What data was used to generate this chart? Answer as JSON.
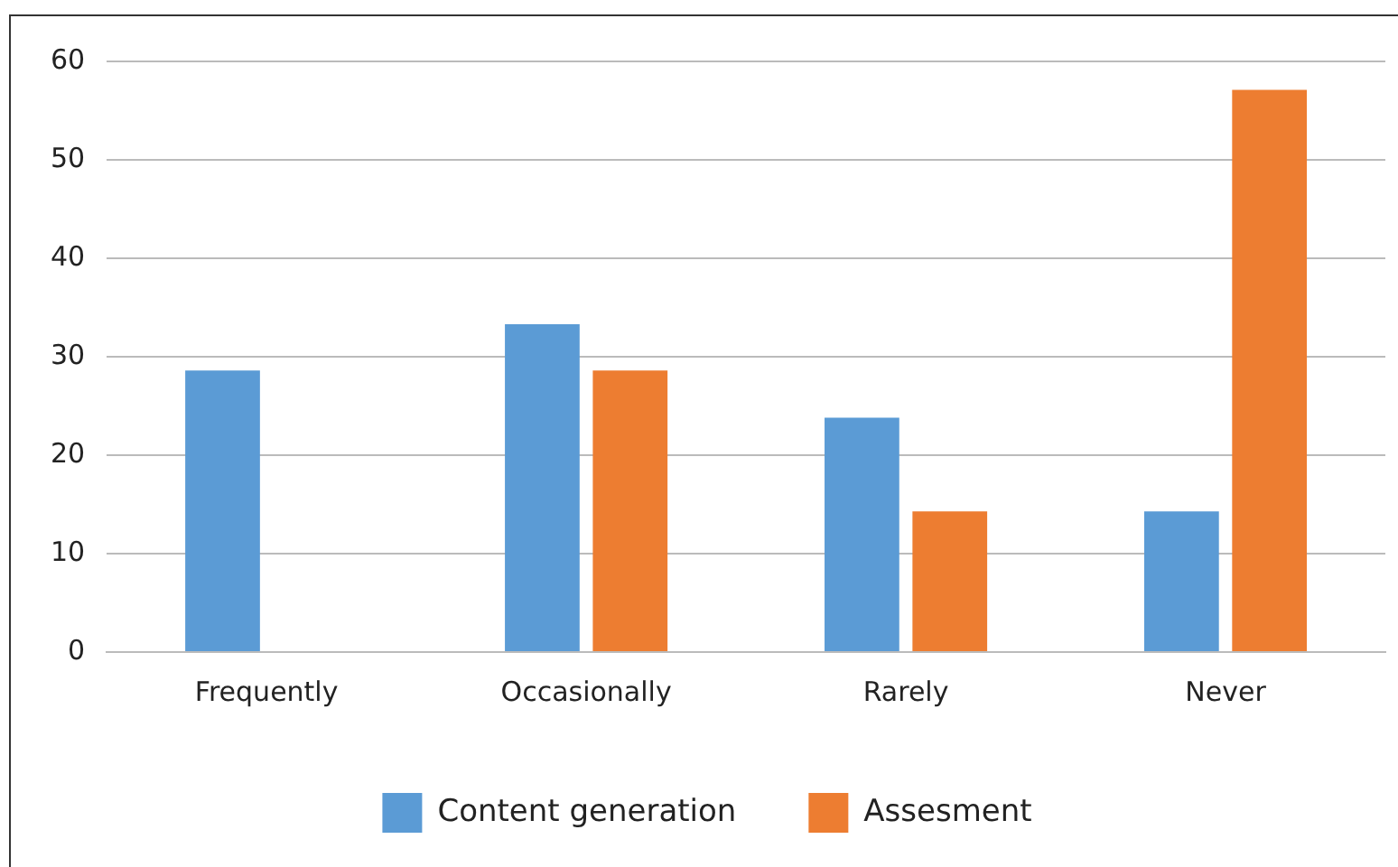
{
  "chart_data": {
    "type": "bar",
    "categories": [
      "Frequently",
      "Occasionally",
      "Rarely",
      "Never"
    ],
    "series": [
      {
        "name": "Content generation",
        "color": "#5b9bd5",
        "values": [
          28.6,
          33.3,
          23.8,
          14.3
        ]
      },
      {
        "name": "Assesment",
        "color": "#ed7d31",
        "values": [
          0,
          28.6,
          14.3,
          57.1
        ]
      }
    ],
    "ylim": [
      0,
      60
    ],
    "yticks": [
      0,
      10,
      20,
      30,
      40,
      50,
      60
    ],
    "grid": "y",
    "legend": "bottom"
  }
}
